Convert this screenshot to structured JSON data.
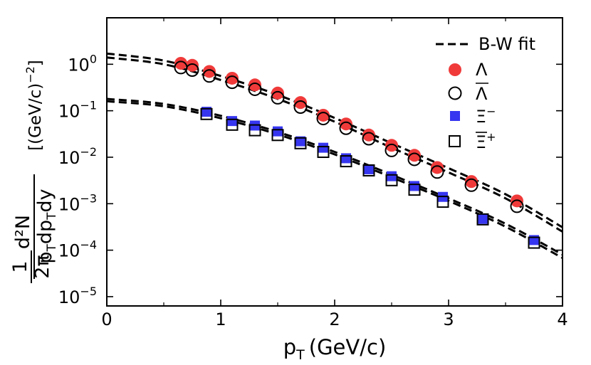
{
  "chart_data": {
    "type": "scatter",
    "scale_y": "log",
    "xlabel": "p",
    "xlabel_sub": "T",
    "xlabel_unit": "(GeV/c)",
    "ylabel": {
      "prefactor_num": "1",
      "prefactor_den": "2π",
      "num": "d²N",
      "den": "p",
      "den_sub1": "T",
      "den_mid": "dp",
      "den_sub2": "T",
      "den_end": "dy",
      "unit": "[(GeV/c)",
      "unit_sup": "−2",
      "unit_end": "]"
    },
    "xlim": [
      0,
      4
    ],
    "ylim_exp": [
      -5.2,
      1.0
    ],
    "x_ticks": [
      {
        "value": 0,
        "label": "0"
      },
      {
        "value": 1,
        "label": "1"
      },
      {
        "value": 2,
        "label": "2"
      },
      {
        "value": 3,
        "label": "3"
      },
      {
        "value": 4,
        "label": "4"
      }
    ],
    "y_ticks": [
      {
        "exp": 0,
        "base": "10",
        "sup": "0"
      },
      {
        "exp": -1,
        "base": "10",
        "sup": "−1"
      },
      {
        "exp": -2,
        "base": "10",
        "sup": "−2"
      },
      {
        "exp": -3,
        "base": "10",
        "sup": "−3"
      },
      {
        "exp": -4,
        "base": "10",
        "sup": "−4"
      },
      {
        "exp": -5,
        "base": "10",
        "sup": "−5"
      }
    ],
    "legend_position": "top-right",
    "legend": [
      {
        "key": "fit",
        "label": "B-W fit",
        "sup": "",
        "marker": "dashed-line"
      },
      {
        "key": "lambda",
        "label": "Λ",
        "sup": "",
        "overline": false,
        "marker": "filled-circle"
      },
      {
        "key": "antilambda",
        "label": "Λ",
        "sup": "",
        "overline": true,
        "marker": "open-circle"
      },
      {
        "key": "xi_minus",
        "label": "Ξ",
        "sup": "−",
        "overline": false,
        "marker": "filled-square"
      },
      {
        "key": "xi_plus",
        "label": "Ξ",
        "sup": "+",
        "overline": true,
        "marker": "open-square"
      }
    ],
    "colors": {
      "lambda": "#f03a3a",
      "xi_minus": "#3636f0",
      "open_marker": "#000000",
      "fit": "#000000"
    },
    "series": [
      {
        "name": "Λ",
        "marker": "filled-circle",
        "color": "#f03a3a",
        "x": [
          0.65,
          0.75,
          0.9,
          1.1,
          1.3,
          1.5,
          1.7,
          1.9,
          2.1,
          2.3,
          2.5,
          2.7,
          2.9,
          3.2,
          3.6
        ],
        "y": [
          1.05,
          0.95,
          0.7,
          0.5,
          0.36,
          0.24,
          0.15,
          0.08,
          0.052,
          0.03,
          0.018,
          0.011,
          0.006,
          0.003,
          0.00115
        ]
      },
      {
        "name": "anti-Λ",
        "marker": "open-circle",
        "color": "#000000",
        "x": [
          0.65,
          0.75,
          0.9,
          1.1,
          1.3,
          1.5,
          1.7,
          1.9,
          2.1,
          2.3,
          2.5,
          2.7,
          2.9,
          3.2,
          3.6
        ],
        "y": [
          0.85,
          0.75,
          0.56,
          0.41,
          0.29,
          0.19,
          0.12,
          0.068,
          0.042,
          0.025,
          0.014,
          0.009,
          0.0048,
          0.0025,
          0.00088
        ]
      },
      {
        "name": "Ξ⁻",
        "marker": "filled-square",
        "color": "#3636f0",
        "x": [
          0.875,
          1.1,
          1.3,
          1.5,
          1.7,
          1.9,
          2.1,
          2.3,
          2.5,
          2.7,
          2.95,
          3.3,
          3.75
        ],
        "y": [
          0.095,
          0.06,
          0.048,
          0.036,
          0.022,
          0.016,
          0.0095,
          0.0055,
          0.0039,
          0.0024,
          0.0014,
          0.00047,
          0.000165
        ]
      },
      {
        "name": "Ξ̄⁺",
        "marker": "open-square",
        "color": "#000000",
        "x": [
          0.875,
          1.1,
          1.3,
          1.5,
          1.7,
          1.9,
          2.1,
          2.3,
          2.5,
          2.7,
          2.95,
          3.3,
          3.75
        ],
        "y": [
          0.085,
          0.05,
          0.038,
          0.03,
          0.02,
          0.013,
          0.0082,
          0.0052,
          0.0032,
          0.002,
          0.0011,
          0.00046,
          0.000145
        ]
      }
    ],
    "fits": [
      {
        "name": "B-W fit Λ",
        "x": [
          0,
          0.5,
          1,
          1.5,
          2,
          2.5,
          3,
          3.5,
          4
        ],
        "y": [
          1.7,
          1.2,
          0.56,
          0.22,
          0.07,
          0.02,
          0.0058,
          0.0016,
          0.00031
        ]
      },
      {
        "name": "B-W fit anti-Λ",
        "x": [
          0,
          0.5,
          1,
          1.5,
          2,
          2.5,
          3,
          3.5,
          4
        ],
        "y": [
          1.4,
          1.0,
          0.46,
          0.18,
          0.058,
          0.016,
          0.0047,
          0.0013,
          0.00025
        ]
      },
      {
        "name": "B-W fit Ξ⁻",
        "x": [
          0,
          0.5,
          1,
          1.5,
          2,
          2.5,
          3,
          3.5,
          4
        ],
        "y": [
          0.18,
          0.14,
          0.078,
          0.035,
          0.013,
          0.0042,
          0.0013,
          0.00037,
          8e-05
        ]
      },
      {
        "name": "B-W fit Ξ̄⁺",
        "x": [
          0,
          0.5,
          1,
          1.5,
          2,
          2.5,
          3,
          3.5,
          4
        ],
        "y": [
          0.16,
          0.125,
          0.069,
          0.031,
          0.0115,
          0.0037,
          0.00115,
          0.00032,
          6.8e-05
        ]
      }
    ]
  }
}
